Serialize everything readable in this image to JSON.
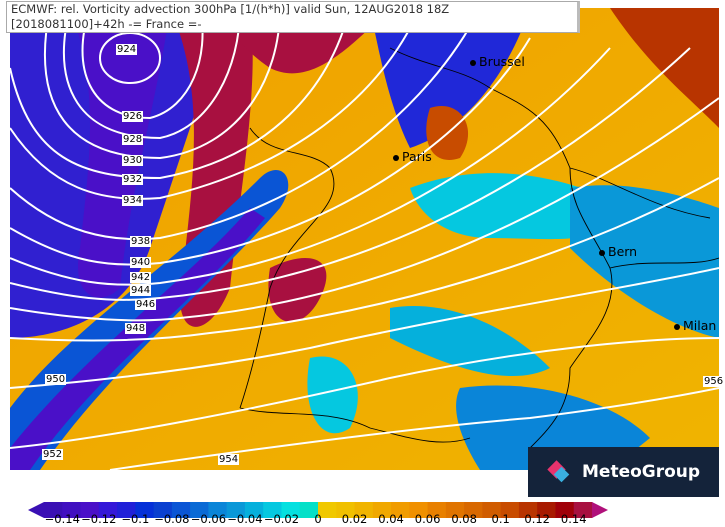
{
  "header": {
    "line1": "ECMWF: rel. Vorticity advection 300hPa [1/(h*h)] valid Sun, 12AUG2018 18Z",
    "line2": "[2018081100]+42h -= France =-"
  },
  "cities": [
    {
      "name": "Brussel"
    },
    {
      "name": "Paris"
    },
    {
      "name": "Bern"
    },
    {
      "name": "Milan"
    }
  ],
  "isobar_labels": [
    "924",
    "926",
    "928",
    "930",
    "932",
    "934",
    "938",
    "940",
    "942",
    "944",
    "946",
    "948",
    "950",
    "952",
    "954",
    "956"
  ],
  "logo": {
    "text": "MeteoGroup",
    "icon": "meteogroup-diamond-icon",
    "bg": "#14233a"
  },
  "colorbar": {
    "min": -0.15,
    "max": 0.15,
    "step": 0.01,
    "tick_labels": [
      "−0.14",
      "−0.12",
      "−0.1",
      "−0.08",
      "−0.06",
      "−0.04",
      "−0.02",
      "0",
      "0.02",
      "0.04",
      "0.06",
      "0.08",
      "0.1",
      "0.12",
      "0.14"
    ],
    "colors": [
      "#3a10b4",
      "#4010c0",
      "#4a10c8",
      "#3418d8",
      "#2020d8",
      "#0530d8",
      "#0a40d0",
      "#0a55d5",
      "#0a6ad5",
      "#0a85d8",
      "#0a98d8",
      "#05b0dc",
      "#05c8e0",
      "#05e0e0",
      "#05e0c8",
      "#f0c800",
      "#f0c000",
      "#f0b400",
      "#f0a800",
      "#f09c00",
      "#f09000",
      "#e88000",
      "#e07400",
      "#d86800",
      "#d05c00",
      "#c84c00",
      "#b83400",
      "#a81a00",
      "#a00008",
      "#a81040"
    ],
    "under_color": "#3a10b4",
    "over_color": "#b0107a"
  }
}
